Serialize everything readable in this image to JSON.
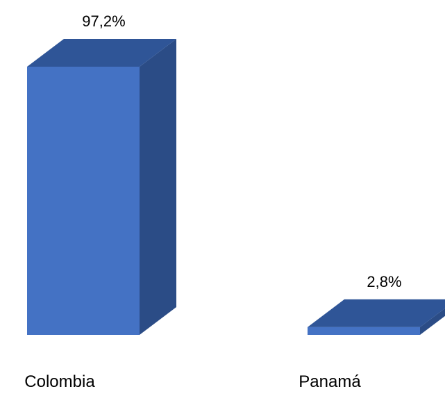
{
  "chart_data": {
    "type": "bar",
    "style": "3d-column",
    "categories": [
      "Colombia",
      "Panamá"
    ],
    "values": [
      97.2,
      2.8
    ],
    "data_labels": [
      "97,2%",
      "2,8%"
    ],
    "unit": "%",
    "ylim": [
      0,
      100
    ],
    "grid": false,
    "legend": "none",
    "colors": {
      "front": "#4472C4",
      "top": "#2F5597",
      "side": "#2B4C86"
    }
  }
}
